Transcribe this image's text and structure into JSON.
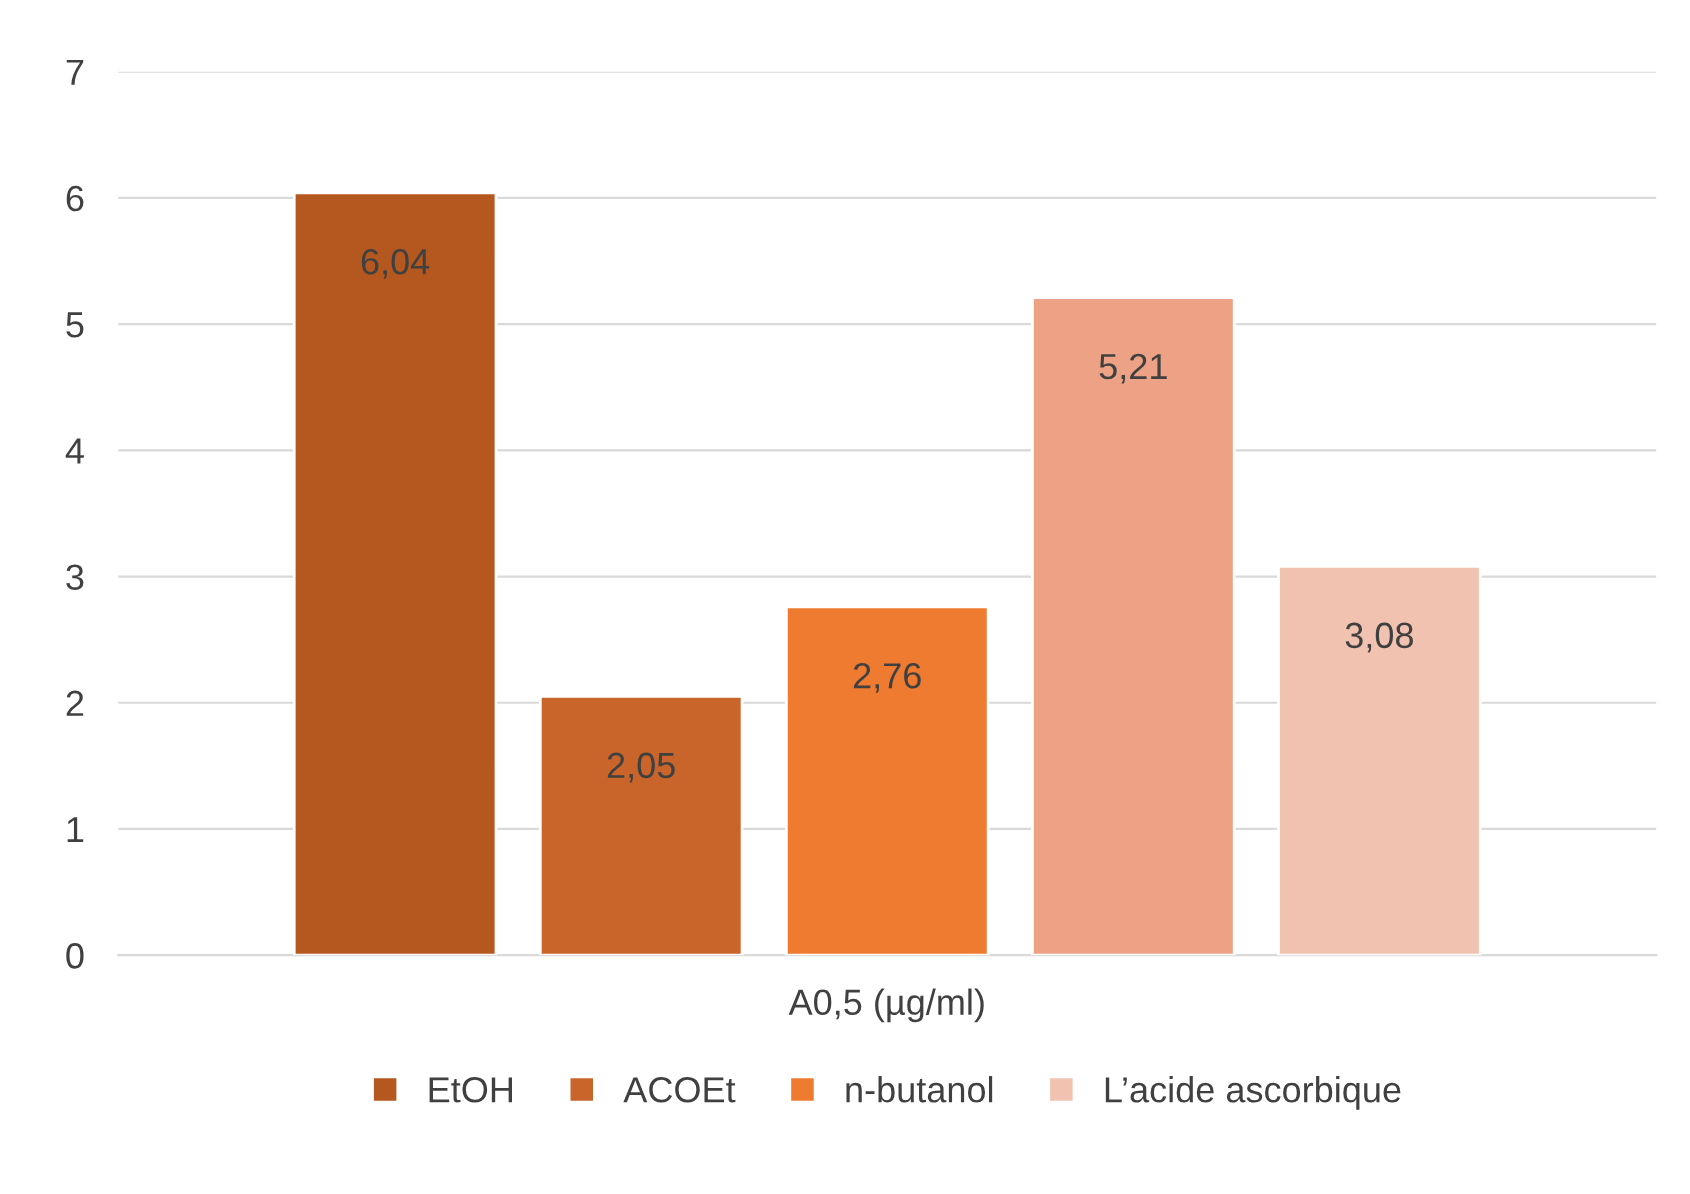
{
  "chart_data": {
    "type": "bar",
    "categories": [
      "A0,5 (µg/ml)"
    ],
    "series": [
      {
        "name": "EtOH",
        "color": "#b5581f",
        "values": [
          6.04
        ],
        "value_labels": [
          "6,04"
        ]
      },
      {
        "name": "ACOEt",
        "color": "#c9652a",
        "values": [
          2.05
        ],
        "value_labels": [
          "2,05"
        ]
      },
      {
        "name": "n-butanol",
        "color": "#ee7b30",
        "values": [
          2.76
        ],
        "value_labels": [
          "2,76"
        ]
      },
      {
        "color": "#eda185",
        "values": [
          5.21
        ],
        "value_labels": [
          "5,21"
        ]
      },
      {
        "name": "L’acide ascorbique",
        "color": "#f2c2b0",
        "values": [
          3.08
        ],
        "value_labels": [
          "3,08"
        ]
      }
    ],
    "ylim": [
      0,
      7
    ],
    "yticks": [
      0,
      1,
      2,
      3,
      4,
      5,
      6,
      7
    ],
    "grid": "y",
    "legend": "bottom"
  }
}
